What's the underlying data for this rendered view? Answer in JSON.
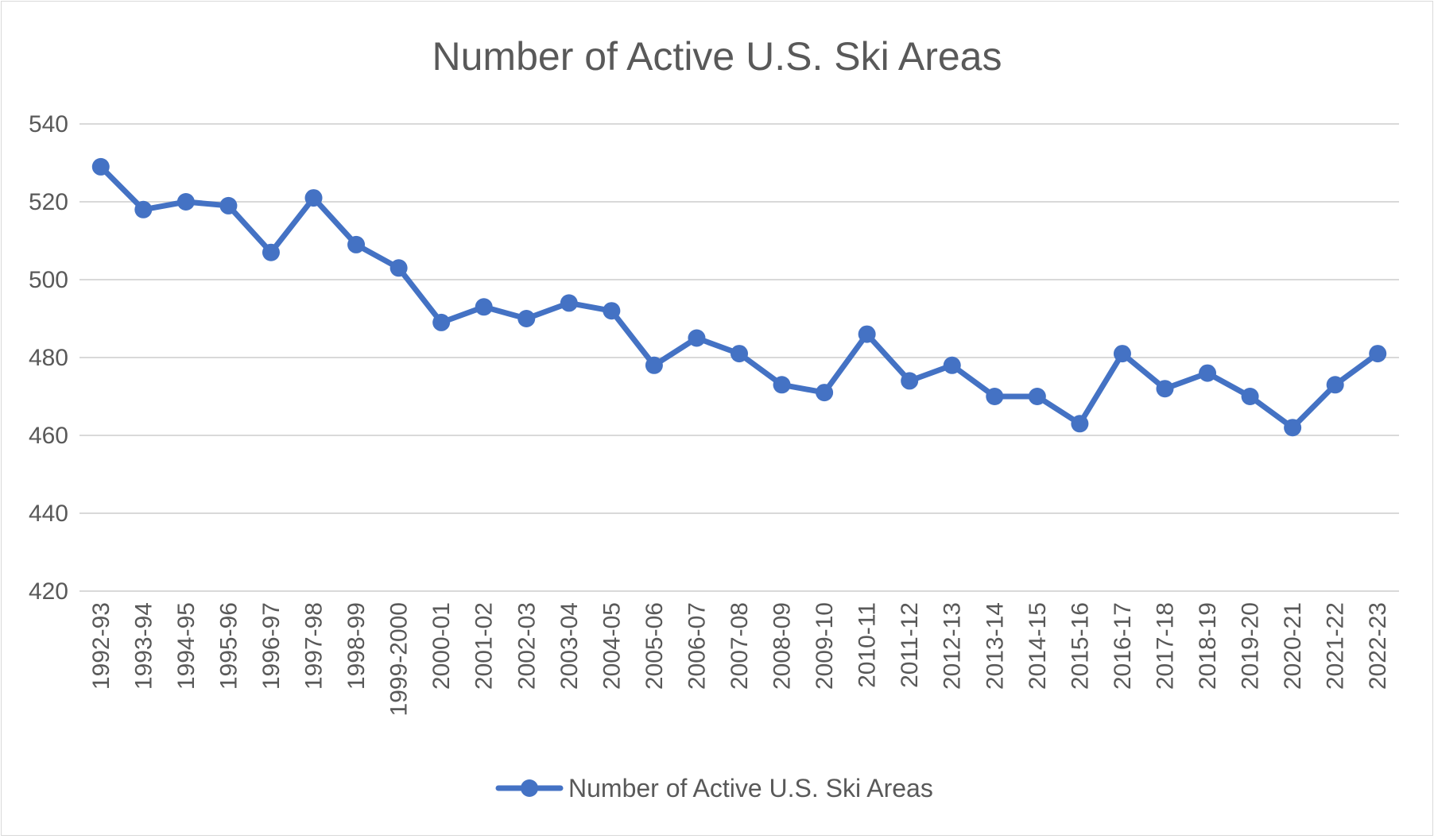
{
  "chart_data": {
    "type": "line",
    "title": "Number of Active U.S. Ski Areas",
    "xlabel": "",
    "ylabel": "",
    "ylim": [
      420,
      540
    ],
    "yticks": [
      420,
      440,
      460,
      480,
      500,
      520,
      540
    ],
    "grid": true,
    "legend_position": "bottom",
    "categories": [
      "1992-93",
      "1993-94",
      "1994-95",
      "1995-96",
      "1996-97",
      "1997-98",
      "1998-99",
      "1999-2000",
      "2000-01",
      "2001-02",
      "2002-03",
      "2003-04",
      "2004-05",
      "2005-06",
      "2006-07",
      "2007-08",
      "2008-09",
      "2009-10",
      "2010-11",
      "2011-12",
      "2012-13",
      "2013-14",
      "2014-15",
      "2015-16",
      "2016-17",
      "2017-18",
      "2018-19",
      "2019-20",
      "2020-21",
      "2021-22",
      "2022-23"
    ],
    "series": [
      {
        "name": "Number of Active U.S. Ski Areas",
        "color": "#4472c4",
        "values": [
          529,
          518,
          520,
          519,
          507,
          521,
          509,
          503,
          489,
          493,
          490,
          494,
          492,
          478,
          485,
          481,
          473,
          471,
          486,
          474,
          478,
          470,
          470,
          463,
          481,
          472,
          476,
          470,
          462,
          473,
          481
        ]
      }
    ]
  }
}
